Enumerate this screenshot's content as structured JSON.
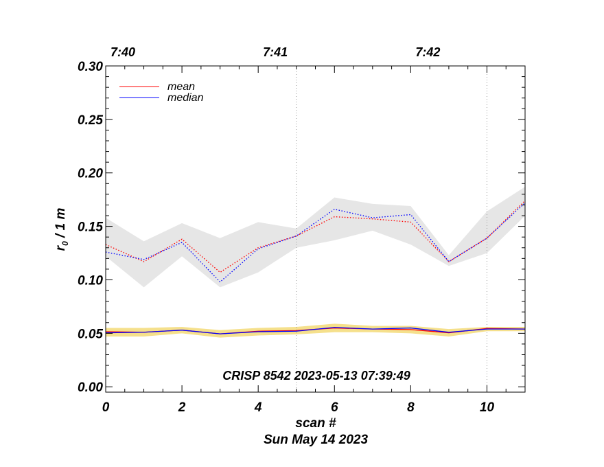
{
  "chart_data": {
    "type": "line",
    "ylabel": "r",
    "ylabel_sub": "0",
    "ylabel_suffix": " / 1 m",
    "xlabel": "scan #",
    "date_label": "Sun May 14 2023",
    "annotation": "CRISP 8542 2023-05-13 07:39:49",
    "xlim": [
      0,
      11
    ],
    "ylim": [
      -0.005,
      0.3
    ],
    "x_ticks": [
      0,
      2,
      4,
      6,
      8,
      10
    ],
    "x_tick_labels": [
      "0",
      "2",
      "4",
      "6",
      "8",
      "10"
    ],
    "y_ticks": [
      0.0,
      0.05,
      0.1,
      0.15,
      0.2,
      0.25,
      0.3
    ],
    "y_tick_labels": [
      "0.00",
      "0.05",
      "0.10",
      "0.15",
      "0.20",
      "0.25",
      "0.30"
    ],
    "top_axis": {
      "ticks": [
        0,
        4,
        8
      ],
      "labels": [
        "7:40",
        "7:41",
        "7:42"
      ]
    },
    "vertical_markers": [
      5,
      10
    ],
    "x": [
      0,
      1,
      2,
      3,
      4,
      5,
      6,
      7,
      8,
      9,
      10,
      11
    ],
    "series": [
      {
        "name": "mean",
        "color": "#ff0000",
        "style": "dotted",
        "values": [
          0.133,
          0.117,
          0.138,
          0.107,
          0.13,
          0.141,
          0.159,
          0.157,
          0.154,
          0.117,
          0.139,
          0.174
        ]
      },
      {
        "name": "median",
        "color": "#0000ff",
        "style": "dotted",
        "values": [
          0.126,
          0.119,
          0.135,
          0.098,
          0.129,
          0.141,
          0.166,
          0.158,
          0.161,
          0.117,
          0.139,
          0.172
        ]
      },
      {
        "name": "mean",
        "color": "#ff0000",
        "style": "solid",
        "values": [
          0.0515,
          0.051,
          0.053,
          0.0495,
          0.052,
          0.0525,
          0.055,
          0.054,
          0.0535,
          0.0505,
          0.0545,
          0.054
        ]
      },
      {
        "name": "median",
        "color": "#0000ff",
        "style": "solid",
        "values": [
          0.0505,
          0.051,
          0.053,
          0.0495,
          0.0515,
          0.052,
          0.0555,
          0.054,
          0.055,
          0.051,
          0.054,
          0.054
        ]
      }
    ],
    "bands": [
      {
        "color": "#e6e6e6",
        "lower": [
          0.122,
          0.093,
          0.122,
          0.093,
          0.107,
          0.13,
          0.137,
          0.146,
          0.133,
          0.113,
          0.125,
          0.16
        ],
        "upper": [
          0.158,
          0.136,
          0.153,
          0.139,
          0.154,
          0.148,
          0.177,
          0.171,
          0.169,
          0.123,
          0.164,
          0.187
        ]
      },
      {
        "color": "#f5e08c",
        "lower": [
          0.047,
          0.047,
          0.05,
          0.046,
          0.048,
          0.049,
          0.051,
          0.051,
          0.05,
          0.047,
          0.052,
          0.052
        ],
        "upper": [
          0.055,
          0.055,
          0.056,
          0.053,
          0.055,
          0.056,
          0.059,
          0.057,
          0.057,
          0.054,
          0.056,
          0.056
        ]
      }
    ],
    "legend": {
      "position": "top-left",
      "entries": [
        {
          "label": "mean",
          "color": "#ff0000"
        },
        {
          "label": "median",
          "color": "#0000ff"
        }
      ]
    }
  }
}
